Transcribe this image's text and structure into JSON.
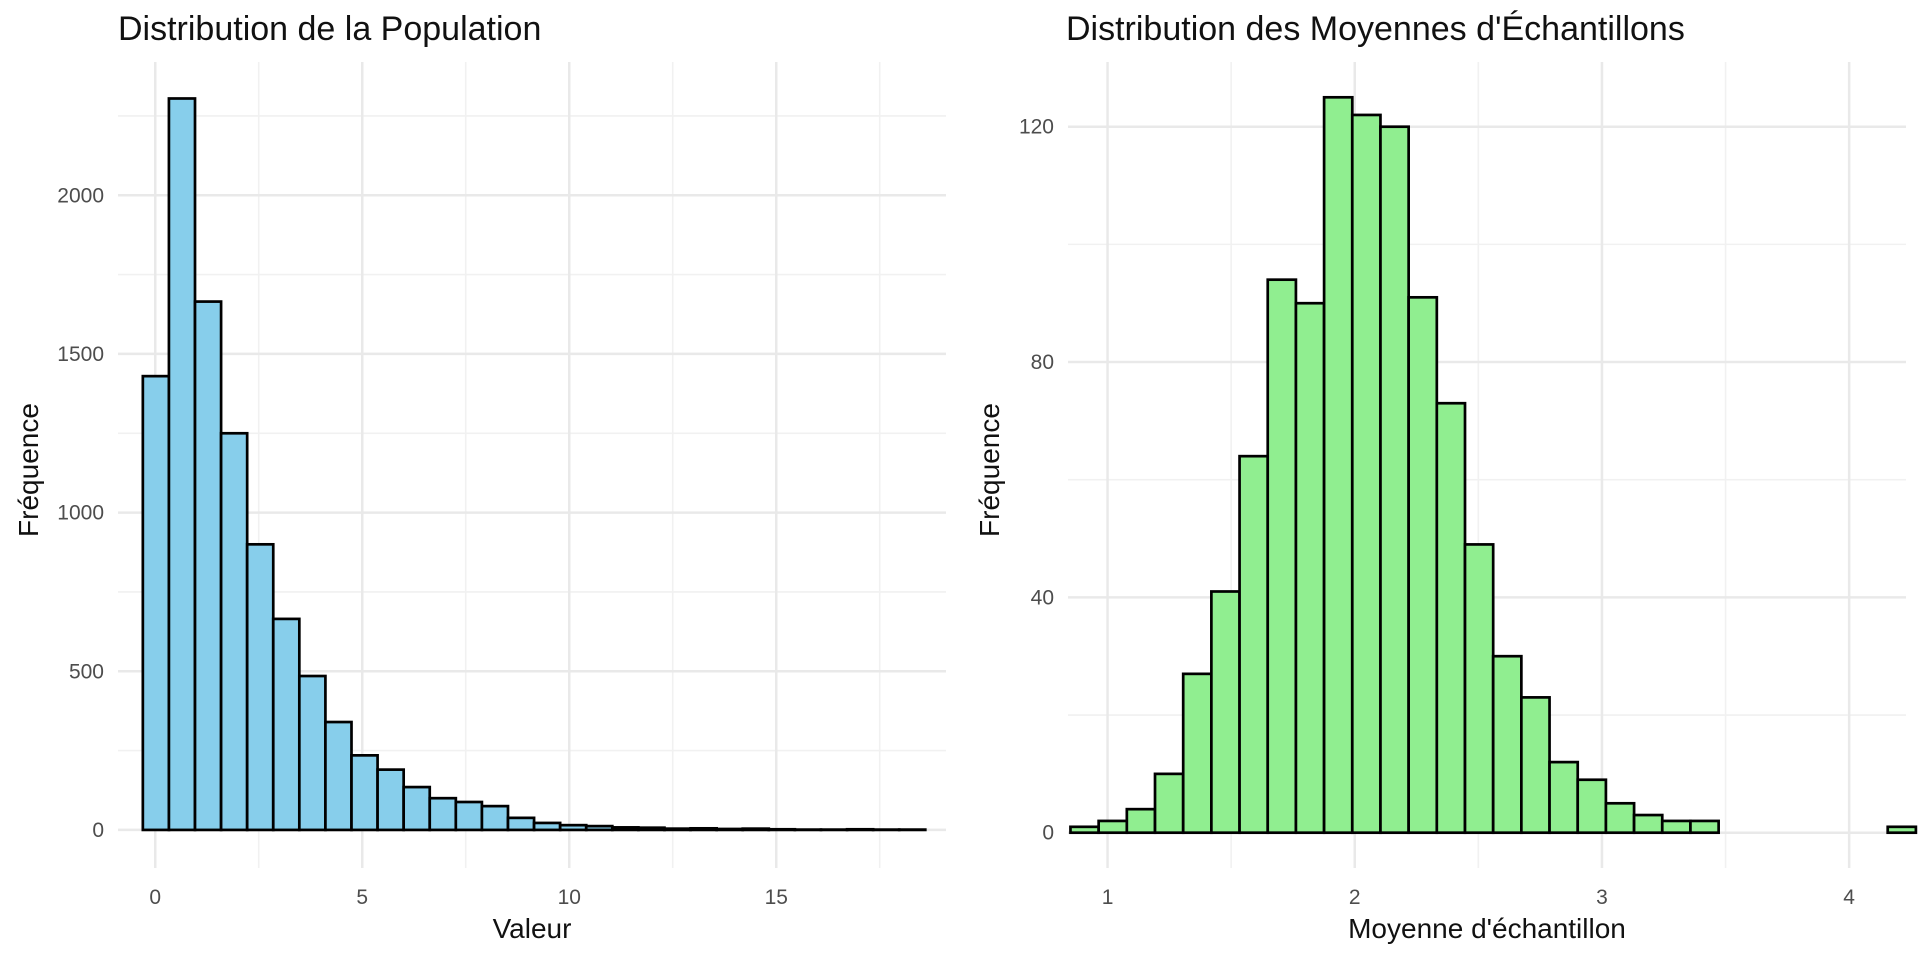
{
  "chart_data": [
    {
      "type": "bar",
      "title": "Distribution de la Population",
      "xlabel": "Valeur",
      "ylabel": "Fréquence",
      "xlim": [
        -0.9,
        19.1
      ],
      "ylim": [
        -120,
        2420
      ],
      "x_ticks": [
        0,
        5,
        10,
        15
      ],
      "y_ticks": [
        0,
        500,
        1000,
        1500,
        2000
      ],
      "minor_x": [
        2.5,
        7.5,
        12.5,
        17.5
      ],
      "minor_y": [
        250,
        750,
        1250,
        1750,
        2250
      ],
      "grid": true,
      "fill_color": "#87CEEB",
      "stroke_color": "#000000",
      "bin_edges": [
        -0.3,
        0.33,
        0.96,
        1.59,
        2.22,
        2.85,
        3.48,
        4.11,
        4.74,
        5.37,
        6.0,
        6.63,
        7.26,
        7.89,
        8.52,
        9.15,
        9.78,
        10.41,
        11.04,
        11.67,
        12.3,
        12.93,
        13.56,
        14.19,
        14.82,
        15.45,
        16.08,
        16.71,
        17.34,
        17.97,
        18.6
      ],
      "values": [
        1430,
        2305,
        1665,
        1250,
        900,
        665,
        485,
        340,
        235,
        190,
        135,
        100,
        88,
        75,
        38,
        22,
        15,
        12,
        8,
        7,
        4,
        5,
        3,
        4,
        2,
        1,
        1,
        2,
        1,
        1
      ]
    },
    {
      "type": "bar",
      "title": "Distribution des Moyennes d'Échantillons",
      "xlabel": "Moyenne d'échantillon",
      "ylabel": "Fréquence",
      "xlim": [
        0.84,
        4.23
      ],
      "ylim": [
        -6,
        131
      ],
      "x_ticks": [
        1,
        2,
        3,
        4
      ],
      "y_ticks": [
        0,
        40,
        80,
        120
      ],
      "minor_x": [
        1.5,
        2.5,
        3.5
      ],
      "minor_y": [
        20,
        60,
        100
      ],
      "grid": true,
      "fill_color": "#90EE90",
      "stroke_color": "#000000",
      "bin_edges": [
        0.85,
        0.964,
        1.078,
        1.192,
        1.306,
        1.42,
        1.534,
        1.648,
        1.762,
        1.876,
        1.99,
        2.104,
        2.218,
        2.332,
        2.446,
        2.56,
        2.674,
        2.788,
        2.902,
        3.016,
        3.13,
        3.244,
        3.358,
        3.472,
        3.586,
        3.7,
        3.814,
        3.928,
        4.042,
        4.156,
        4.27
      ],
      "values": [
        1,
        2,
        4,
        10,
        27,
        41,
        64,
        94,
        90,
        125,
        122,
        120,
        91,
        73,
        49,
        30,
        23,
        12,
        9,
        5,
        3,
        2,
        2,
        0,
        0,
        0,
        0,
        0,
        0,
        1
      ]
    }
  ]
}
